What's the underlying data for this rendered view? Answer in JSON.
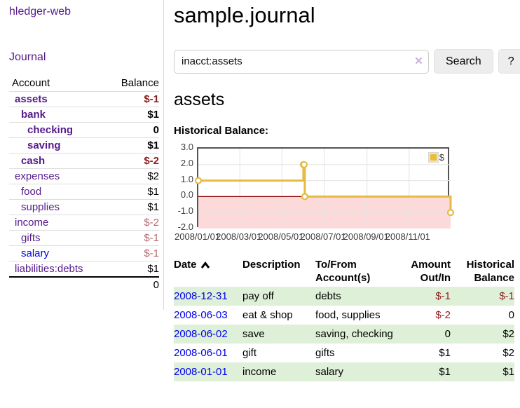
{
  "brand": "hledger-web",
  "nav": {
    "journal_label": "Journal"
  },
  "sidebar_table": {
    "account_header": "Account",
    "balance_header": "Balance",
    "rows": [
      {
        "account": "assets",
        "level": 1,
        "bold": true,
        "balance": "$-1",
        "negative": "strong",
        "link_color": "purple"
      },
      {
        "account": "bank",
        "level": 2,
        "bold": true,
        "balance": "$1",
        "negative": "none",
        "link_color": "purple"
      },
      {
        "account": "checking",
        "level": 3,
        "bold": true,
        "balance": "0",
        "negative": "none",
        "link_color": "purple"
      },
      {
        "account": "saving",
        "level": 3,
        "bold": true,
        "balance": "$1",
        "negative": "none",
        "link_color": "purple"
      },
      {
        "account": "cash",
        "level": 2,
        "bold": true,
        "balance": "$-2",
        "negative": "strong",
        "link_color": "purple"
      },
      {
        "account": "expenses",
        "level": 1,
        "bold": false,
        "balance": "$2",
        "negative": "none",
        "link_color": "purple"
      },
      {
        "account": "food",
        "level": 2,
        "bold": false,
        "balance": "$1",
        "negative": "none",
        "link_color": "purple"
      },
      {
        "account": "supplies",
        "level": 2,
        "bold": false,
        "balance": "$1",
        "negative": "none",
        "link_color": "purple"
      },
      {
        "account": "income",
        "level": 1,
        "bold": false,
        "balance": "$-2",
        "negative": "soft",
        "link_color": "purple"
      },
      {
        "account": "gifts",
        "level": 2,
        "bold": false,
        "balance": "$-1",
        "negative": "soft",
        "link_color": "purple"
      },
      {
        "account": "salary",
        "level": 2,
        "bold": false,
        "balance": "$-1",
        "negative": "soft",
        "link_color": "blue"
      },
      {
        "account": "liabilities:debts",
        "level": 1,
        "bold": false,
        "balance": "$1",
        "negative": "none",
        "link_color": "purple"
      }
    ],
    "total": "0"
  },
  "header": {
    "title": "sample.journal"
  },
  "search": {
    "value": "inacct:assets",
    "clear_icon": "×",
    "button_label": "Search",
    "help_label": "?"
  },
  "account_page": {
    "title": "assets",
    "chart_label": "Historical Balance:"
  },
  "chart_data": {
    "type": "line",
    "step": true,
    "title": "Historical Balance:",
    "x_start": "2008-01-01",
    "x_range_days": 365,
    "ylim": [
      -2,
      3
    ],
    "y_ticks": [
      "3.0",
      "2.0",
      "1.0",
      "0.0",
      "-1.0",
      "-2.0"
    ],
    "x_ticks": [
      "2008/01/01",
      "2008/03/01",
      "2008/05/01",
      "2008/07/01",
      "2008/09/01",
      "2008/11/01"
    ],
    "grid": true,
    "series": [
      {
        "name": "$",
        "color": "#e6bb45",
        "points": [
          [
            "2008-01-01",
            1
          ],
          [
            "2008-06-01",
            2
          ],
          [
            "2008-06-02",
            2
          ],
          [
            "2008-06-03",
            0
          ],
          [
            "2008-12-31",
            -1
          ]
        ]
      }
    ],
    "negative_zone_color": "#fcdada",
    "zero_line_color": "#8b0000",
    "gridline_color": "#e3e3e3",
    "legend": {
      "label": "$",
      "position": "top-right",
      "swatch_color": "#e8bc3d"
    }
  },
  "register_table": {
    "headers": {
      "date": "Date",
      "description": "Description",
      "tofrom_line1": "To/From",
      "tofrom_line2": "Account(s)",
      "amount_line1": "Amount",
      "amount_line2": "Out/In",
      "historical_line1": "Historical",
      "historical_line2": "Balance"
    },
    "rows": [
      {
        "date": "2008-12-31",
        "description": "pay off",
        "accounts": "debts",
        "amount": "$-1",
        "amount_negative": true,
        "balance": "$-1",
        "balance_negative": true
      },
      {
        "date": "2008-06-03",
        "description": "eat & shop",
        "accounts": "food, supplies",
        "amount": "$-2",
        "amount_negative": true,
        "balance": "0",
        "balance_negative": false
      },
      {
        "date": "2008-06-02",
        "description": "save",
        "accounts": "saving, checking",
        "amount": "0",
        "amount_negative": false,
        "balance": "$2",
        "balance_negative": false
      },
      {
        "date": "2008-06-01",
        "description": "gift",
        "accounts": "gifts",
        "amount": "$1",
        "amount_negative": false,
        "balance": "$2",
        "balance_negative": false
      },
      {
        "date": "2008-01-01",
        "description": "income",
        "accounts": "salary",
        "amount": "$1",
        "amount_negative": false,
        "balance": "$1",
        "balance_negative": false
      }
    ]
  }
}
